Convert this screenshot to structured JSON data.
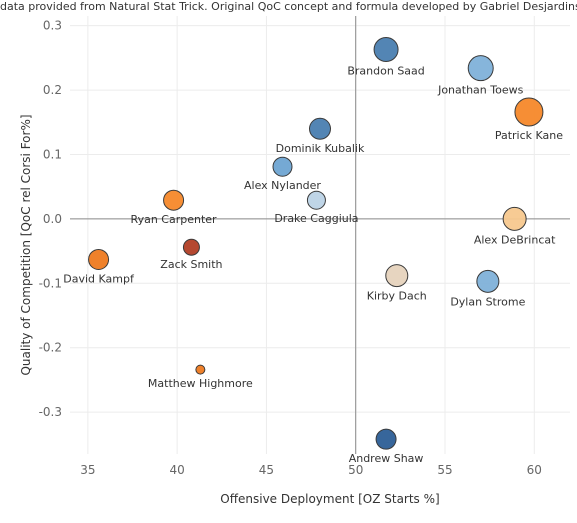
{
  "note": "data provided from Natural Stat Trick.  Original QoC concept and formula developed by Gabriel Desjardins.",
  "chart_data": {
    "type": "scatter",
    "xlabel": "Offensive Deployment [OZ Starts %]",
    "ylabel": "Quality of Competition [QoC rel Corsi For%]",
    "xlim": [
      34,
      62
    ],
    "ylim": [
      -0.365,
      0.315
    ],
    "xticks": [
      35,
      40,
      45,
      50,
      55,
      60
    ],
    "yticks": [
      0.3,
      0.2,
      0.1,
      0.0,
      -0.1,
      -0.2,
      -0.3
    ],
    "ytick_labels": [
      "0.3",
      "0.2",
      "0.1",
      "0.0",
      "-0.1",
      "-0.2",
      "-0.3"
    ],
    "reference_lines": {
      "x": 50,
      "y": 0
    },
    "grid": true,
    "points": [
      {
        "name": "Brandon Saad",
        "x": 51.7,
        "y": 0.263,
        "size": 12,
        "color": "#4a7eb0",
        "label_pos": "below"
      },
      {
        "name": "Jonathan Toews",
        "x": 57.0,
        "y": 0.234,
        "size": 12.5,
        "color": "#7fb1d9",
        "label_pos": "below"
      },
      {
        "name": "Patrick Kane",
        "x": 59.7,
        "y": 0.166,
        "size": 14,
        "color": "#f5882a",
        "label_pos": "below"
      },
      {
        "name": "Dominik Kubalik",
        "x": 48.0,
        "y": 0.14,
        "size": 10.5,
        "color": "#4a7eb0",
        "label_pos": "below"
      },
      {
        "name": "Alex Nylander",
        "x": 45.9,
        "y": 0.081,
        "size": 9.5,
        "color": "#6ea4d2",
        "label_pos": "below"
      },
      {
        "name": "Drake Caggiula",
        "x": 47.8,
        "y": 0.029,
        "size": 9,
        "color": "#bcd3e6",
        "label_pos": "below"
      },
      {
        "name": "Ryan Carpenter",
        "x": 39.8,
        "y": 0.029,
        "size": 10,
        "color": "#f5882a",
        "label_pos": "below"
      },
      {
        "name": "Alex DeBrincat",
        "x": 58.9,
        "y": 0.0,
        "size": 11.5,
        "color": "#f7c88e",
        "label_pos": "below"
      },
      {
        "name": "David Kampf",
        "x": 35.6,
        "y": -0.063,
        "size": 10,
        "color": "#ee7a20",
        "label_pos": "below"
      },
      {
        "name": "Zack Smith",
        "x": 40.8,
        "y": -0.044,
        "size": 8,
        "color": "#b13e25",
        "label_pos": "below"
      },
      {
        "name": "Kirby Dach",
        "x": 52.3,
        "y": -0.088,
        "size": 11,
        "color": "#e6d3bd",
        "label_pos": "below"
      },
      {
        "name": "Dylan Strome",
        "x": 57.4,
        "y": -0.097,
        "size": 11,
        "color": "#7fb1d9",
        "label_pos": "below"
      },
      {
        "name": "Matthew Highmore",
        "x": 41.3,
        "y": -0.234,
        "size": 4.5,
        "color": "#ee7a20",
        "label_pos": "below"
      },
      {
        "name": "Andrew Shaw",
        "x": 51.7,
        "y": -0.342,
        "size": 10,
        "color": "#2c5e96",
        "label_pos": "below"
      }
    ]
  }
}
